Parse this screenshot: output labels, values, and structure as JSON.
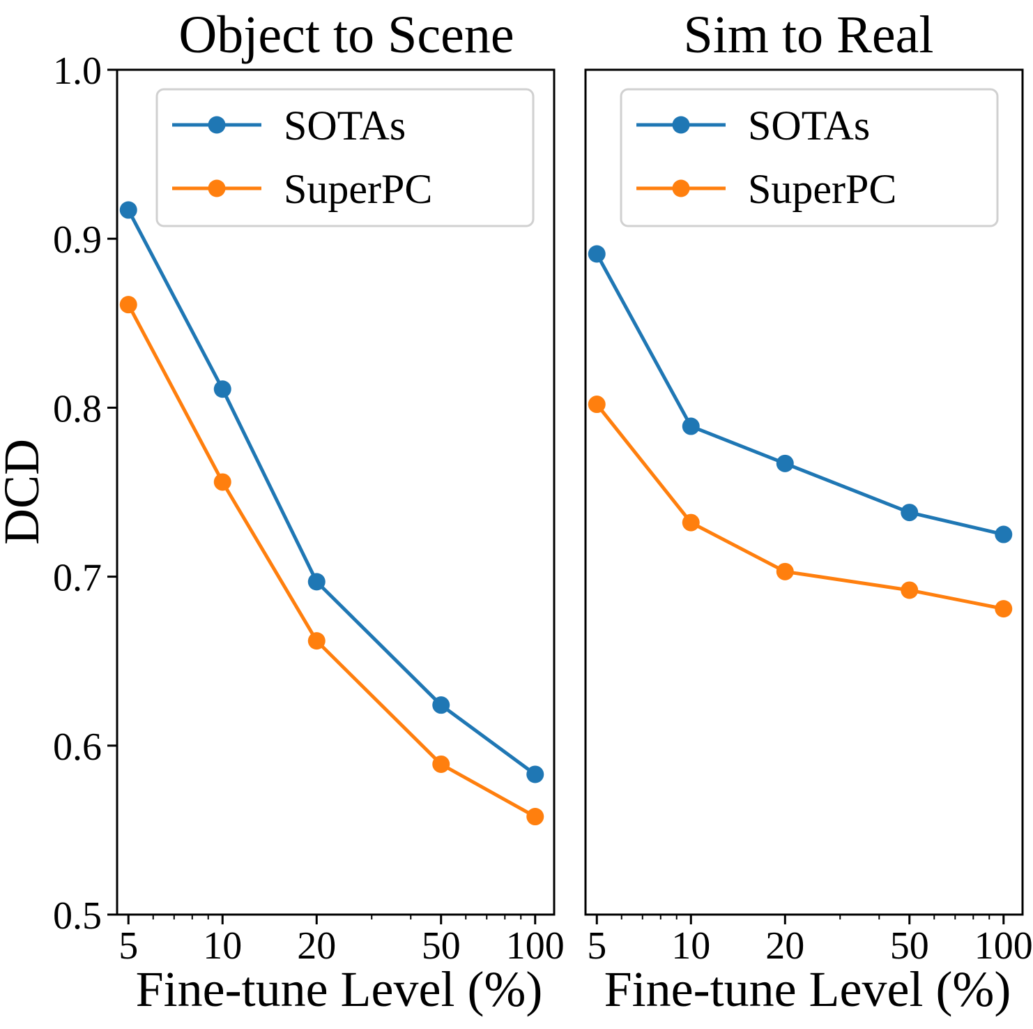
{
  "figure": {
    "ylabel": "DCD",
    "colors": {
      "SOTAs": "#1f77b4",
      "SuperPC": "#ff7f0e"
    }
  },
  "chart_data": [
    {
      "type": "line",
      "title": "Object to Scene",
      "xlabel": "Fine-tune Level (%)",
      "ylabel": "DCD",
      "xscale": "log",
      "x": [
        5,
        10,
        20,
        50,
        100
      ],
      "xticks": [
        "5",
        "10",
        "20",
        "50",
        "100"
      ],
      "ylim": [
        0.5,
        1.0
      ],
      "yticks": [
        "0.5",
        "0.6",
        "0.7",
        "0.8",
        "0.9",
        "1.0"
      ],
      "legend": "top-right",
      "series": [
        {
          "name": "SOTAs",
          "values": [
            0.917,
            0.811,
            0.697,
            0.624,
            0.583
          ]
        },
        {
          "name": "SuperPC",
          "values": [
            0.861,
            0.756,
            0.662,
            0.589,
            0.558
          ]
        }
      ]
    },
    {
      "type": "line",
      "title": "Sim to Real",
      "xlabel": "Fine-tune Level (%)",
      "ylabel": "",
      "xscale": "log",
      "x": [
        5,
        10,
        20,
        50,
        100
      ],
      "xticks": [
        "5",
        "10",
        "20",
        "50",
        "100"
      ],
      "ylim": [
        0.5,
        1.0
      ],
      "yticks": [],
      "legend": "top-right",
      "series": [
        {
          "name": "SOTAs",
          "values": [
            0.891,
            0.789,
            0.767,
            0.738,
            0.725
          ]
        },
        {
          "name": "SuperPC",
          "values": [
            0.802,
            0.732,
            0.703,
            0.692,
            0.681
          ]
        }
      ]
    }
  ]
}
